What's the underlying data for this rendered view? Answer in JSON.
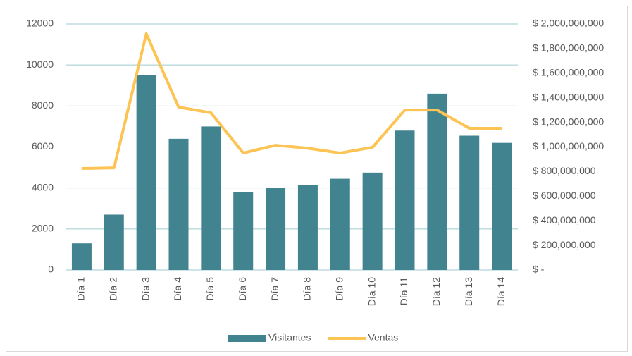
{
  "chart_data": {
    "type": "bar",
    "categories": [
      "Día 1",
      "Día 2",
      "Día 3",
      "Día 4",
      "Día 5",
      "Día 6",
      "Día 7",
      "Día 8",
      "Día 9",
      "Día 10",
      "Día 11",
      "Día 12",
      "Día 13",
      "Día 14"
    ],
    "series": [
      {
        "name": "Visitantes",
        "type": "bar",
        "color": "#41848f",
        "values": [
          1300,
          2700,
          9500,
          6400,
          7000,
          3800,
          4000,
          4150,
          4450,
          4750,
          6800,
          8600,
          6550,
          6200
        ]
      },
      {
        "name": "Ventas",
        "type": "line",
        "axis": "y2",
        "color": "#fcc454",
        "values": [
          825000000,
          830000000,
          1920000000,
          1324000000,
          1278000000,
          951000000,
          1014000000,
          990000000,
          951000000,
          997000000,
          1300000000,
          1300000000,
          1152000000,
          1152000000
        ]
      }
    ],
    "ylim": [
      0,
      12000
    ],
    "yticks": [
      0,
      2000,
      4000,
      6000,
      8000,
      10000,
      12000
    ],
    "y2lim": [
      0,
      2000000000
    ],
    "y2ticks": [
      {
        "value": 0,
        "label": "$ -"
      },
      {
        "value": 200000000,
        "label": "$ 200,000,000"
      },
      {
        "value": 400000000,
        "label": "$ 400,000,000"
      },
      {
        "value": 600000000,
        "label": "$ 600,000,000"
      },
      {
        "value": 800000000,
        "label": "$ 800,000,000"
      },
      {
        "value": 1000000000,
        "label": "$ 1,000,000,000"
      },
      {
        "value": 1200000000,
        "label": "$ 1,200,000,000"
      },
      {
        "value": 1400000000,
        "label": "$ 1,400,000,000"
      },
      {
        "value": 1600000000,
        "label": "$ 1,600,000,000"
      },
      {
        "value": 1800000000,
        "label": "$ 1,800,000,000"
      },
      {
        "value": 2000000000,
        "label": "$ 2,000,000,000"
      }
    ],
    "grid": true,
    "legend": "bottom"
  }
}
